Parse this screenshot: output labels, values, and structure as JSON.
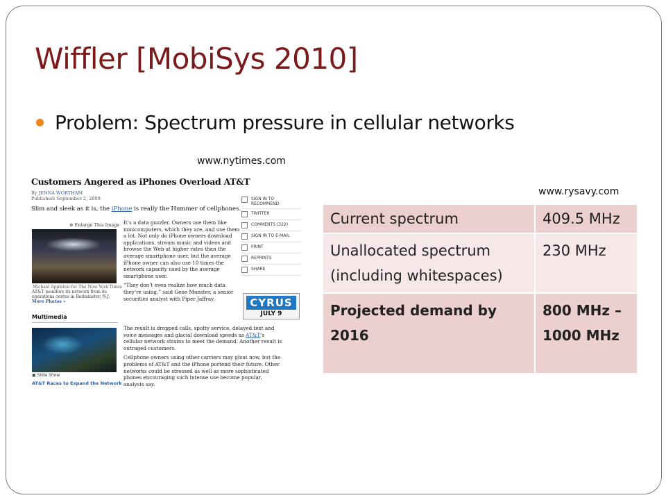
{
  "slide": {
    "title": "Wiffler [MobiSys 2010]",
    "bullet": "Problem: Spectrum pressure in cellular networks",
    "source_left": "www.nytimes.com",
    "source_right": "www.rysavy.com"
  },
  "article": {
    "headline": "Customers Angered as iPhones Overload AT&T",
    "byline_by": "By",
    "byline_author": "JENNA WORTHAM",
    "published": "Published: September 2, 2009",
    "lead_pre": "Slim and sleek as it is, the ",
    "lead_link": "iPhone",
    "lead_post": " is really the Hummer of cellphones.",
    "enlarge": "Enlarge This Image",
    "photo_credit": "Michael Appleton for The New York Times",
    "photo_caption": "AT&T monitors its network from its operations center in Bedminster, N.J.",
    "more_photos": "More Photos »",
    "multimedia": "Multimedia",
    "slide_show": "Slide Show",
    "related_link": "AT&T Races to Expand the Network",
    "para1": "It’s a data guzzler. Owners use them like minicomputers, which they are, and use them a lot. Not only do iPhone owners download applications, stream music and videos and browse the Web at higher rates than the average smartphone user, but the average iPhone owner can also use 10 times the network capacity used by the average smartphone user.",
    "para2": "“They don’t even realize how much data they’re using,” said Gene Munster, a senior securities analyst with Piper Jaffray.",
    "para3_pre": "The result is dropped calls, spotty service, delayed text and voice messages and glacial download speeds as ",
    "para3_link": "AT&T",
    "para3_post": "’s cellular network strains to meet the demand. Another result is outraged customers.",
    "para4": "Cellphone owners using other carriers may gloat now, but the problems of AT&T and the iPhone portend their future. Other networks could be stressed as well as more sophisticated phones encouraging such intense use become popular, analysts say.",
    "tools": [
      {
        "label": "SIGN IN TO RECOMMEND",
        "icon": "checkbox-icon"
      },
      {
        "label": "TWITTER",
        "icon": "twitter-icon"
      },
      {
        "label": "COMMENTS (322)",
        "icon": "comment-icon"
      },
      {
        "label": "SIGN IN TO E-MAIL",
        "icon": "email-icon"
      },
      {
        "label": "PRINT",
        "icon": "print-icon"
      },
      {
        "label": "REPRINTS",
        "icon": "reprint-icon"
      },
      {
        "label": "SHARE",
        "icon": "share-icon"
      }
    ],
    "ad_title": "CYRUS",
    "ad_date": "JULY 9"
  },
  "table": {
    "rows": [
      {
        "label": "Current spectrum",
        "value": "409.5 MHz"
      },
      {
        "label": "Unallocated spectrum (including whitespaces)",
        "value": "230 MHz"
      },
      {
        "label": "Projected demand by 2016",
        "value": "800 MHz – 1000 MHz"
      }
    ]
  },
  "colors": {
    "title": "#7b1a1a",
    "bullet": "#f0861e",
    "table_dark": "#eccfcf",
    "table_light": "#f6e8e8"
  }
}
